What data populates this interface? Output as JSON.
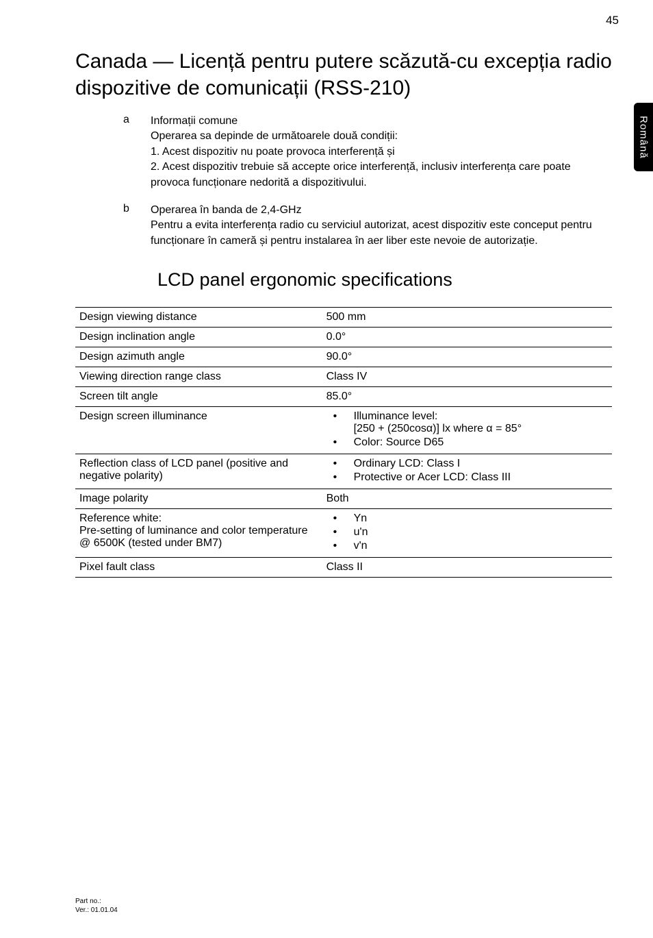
{
  "page_number": "45",
  "side_tab": "Română",
  "title": "Canada — Licență pentru putere scăzută-cu excepția radio dispozitive de comunicații (RSS-210)",
  "list": [
    {
      "letter": "a",
      "heading": "Informații comune",
      "lines": [
        "Operarea sa depinde de următoarele două condiții:",
        "1. Acest dispozitiv nu poate provoca interferență și",
        "2. Acest dispozitiv trebuie să accepte orice interferență, inclusiv interferența care poate provoca funcționare nedorită a dispozitivului."
      ]
    },
    {
      "letter": "b",
      "heading": "Operarea în banda de 2,4-GHz",
      "lines": [
        "Pentru a evita interferența radio cu serviciul autorizat, acest dispozitiv este conceput pentru funcționare în cameră și pentru instalarea în aer liber este nevoie de autorizație."
      ]
    }
  ],
  "subtitle": "LCD panel ergonomic specifications",
  "table": [
    {
      "label": "Design viewing distance",
      "type": "text",
      "value": "500 mm"
    },
    {
      "label": "Design inclination angle",
      "type": "text",
      "value": "0.0°"
    },
    {
      "label": "Design azimuth angle",
      "type": "text",
      "value": "90.0°"
    },
    {
      "label": "Viewing direction range class",
      "type": "text",
      "value": "Class IV"
    },
    {
      "label": "Screen tilt angle",
      "type": "text",
      "value": "85.0°"
    },
    {
      "label": "Design screen illuminance",
      "type": "bullets",
      "items": [
        "Illuminance level:\n[250 + (250cosα)] lx where α = 85°",
        "Color: Source D65"
      ]
    },
    {
      "label": "Reflection class of LCD panel (positive and negative polarity)",
      "type": "bullets",
      "items": [
        "Ordinary LCD: Class I",
        "Protective or Acer LCD: Class III"
      ]
    },
    {
      "label": "Image polarity",
      "type": "text",
      "value": "Both"
    },
    {
      "label": "Reference white:\nPre-setting of luminance and color temperature @ 6500K (tested under BM7)",
      "type": "bullets",
      "items": [
        "Yn",
        "u'n",
        "v'n"
      ]
    },
    {
      "label": "Pixel fault class",
      "type": "text",
      "value": "Class II"
    }
  ],
  "footer": {
    "line1": "Part no.:",
    "line2": "Ver.: 01.01.04"
  }
}
